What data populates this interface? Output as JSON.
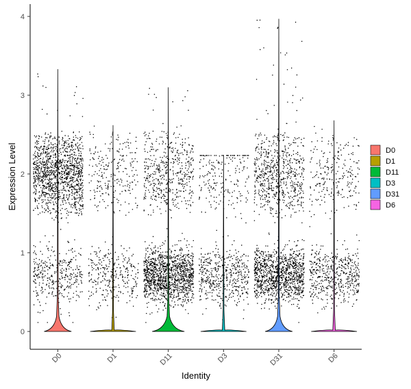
{
  "chart_data": {
    "type": "violin",
    "xlabel": "Identity",
    "ylabel": "Expression Level",
    "ylim": [
      -0.2,
      4.2
    ],
    "yticks": [
      "0",
      "1",
      "2",
      "3",
      "4"
    ],
    "grid": false,
    "legend_position": "right",
    "categories": [
      "D0",
      "D1",
      "D11",
      "D3",
      "D31",
      "D6"
    ],
    "series": [
      {
        "name": "D0",
        "color": "#F8766D",
        "max": 3.33,
        "zero_fraction": 0.55,
        "points": 1700,
        "upper_mass": 0.8
      },
      {
        "name": "D1",
        "color": "#B79F00",
        "max": 2.62,
        "zero_fraction": 0.92,
        "points": 550,
        "upper_mass": 0.45
      },
      {
        "name": "D11",
        "color": "#00BA38",
        "max": 3.1,
        "zero_fraction": 0.65,
        "points": 3000,
        "upper_mass": 0.25
      },
      {
        "name": "D3",
        "color": "#00BFC4",
        "max": 2.24,
        "zero_fraction": 0.92,
        "points": 700,
        "upper_mass": 0.3
      },
      {
        "name": "D31",
        "color": "#619CFF",
        "max": 3.97,
        "zero_fraction": 0.55,
        "points": 4200,
        "upper_mass": 0.35
      },
      {
        "name": "D6",
        "color": "#F564E3",
        "max": 2.68,
        "zero_fraction": 0.92,
        "points": 750,
        "upper_mass": 0.3
      }
    ]
  }
}
